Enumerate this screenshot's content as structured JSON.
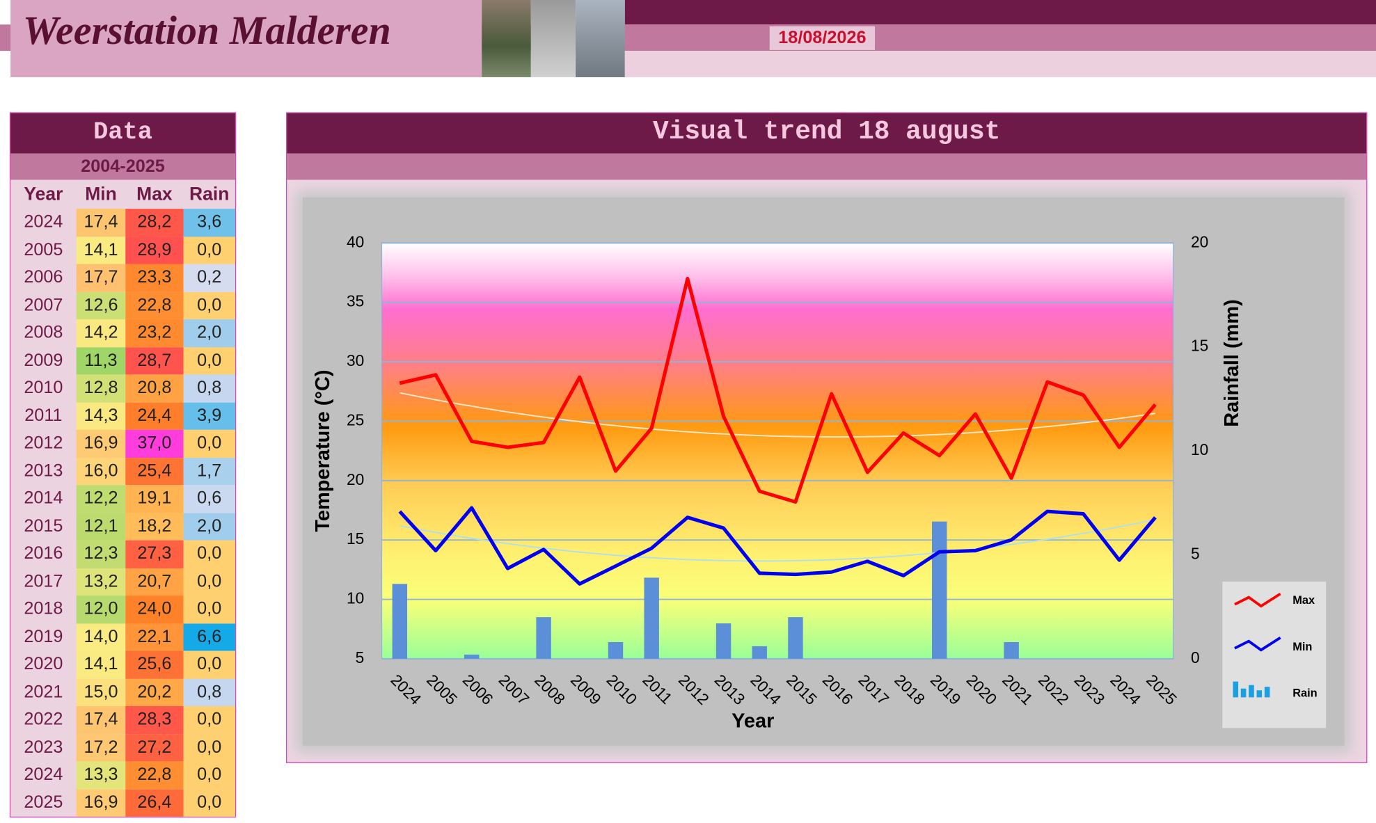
{
  "header": {
    "title": "Weerstation Malderen",
    "date": "18/08/2026"
  },
  "table": {
    "title": "Data",
    "subtitle": "2004-2025",
    "columns": [
      "Year",
      "Min",
      "Max",
      "Rain"
    ],
    "rows": [
      [
        "2024",
        "17,4",
        "28,2",
        "3,6"
      ],
      [
        "2005",
        "14,1",
        "28,9",
        "0,0"
      ],
      [
        "2006",
        "17,7",
        "23,3",
        "0,2"
      ],
      [
        "2007",
        "12,6",
        "22,8",
        "0,0"
      ],
      [
        "2008",
        "14,2",
        "23,2",
        "2,0"
      ],
      [
        "2009",
        "11,3",
        "28,7",
        "0,0"
      ],
      [
        "2010",
        "12,8",
        "20,8",
        "0,8"
      ],
      [
        "2011",
        "14,3",
        "24,4",
        "3,9"
      ],
      [
        "2012",
        "16,9",
        "37,0",
        "0,0"
      ],
      [
        "2013",
        "16,0",
        "25,4",
        "1,7"
      ],
      [
        "2014",
        "12,2",
        "19,1",
        "0,6"
      ],
      [
        "2015",
        "12,1",
        "18,2",
        "2,0"
      ],
      [
        "2016",
        "12,3",
        "27,3",
        "0,0"
      ],
      [
        "2017",
        "13,2",
        "20,7",
        "0,0"
      ],
      [
        "2018",
        "12,0",
        "24,0",
        "0,0"
      ],
      [
        "2019",
        "14,0",
        "22,1",
        "6,6"
      ],
      [
        "2020",
        "14,1",
        "25,6",
        "0,0"
      ],
      [
        "2021",
        "15,0",
        "20,2",
        "0,8"
      ],
      [
        "2022",
        "17,4",
        "28,3",
        "0,0"
      ],
      [
        "2023",
        "17,2",
        "27,2",
        "0,0"
      ],
      [
        "2024",
        "13,3",
        "22,8",
        "0,0"
      ],
      [
        "2025",
        "16,9",
        "26,4",
        "0,0"
      ]
    ]
  },
  "chart_data": {
    "type": "line",
    "title": "Visual trend 18 august",
    "x_label": "Year",
    "y_label": "Temperature (°C)",
    "y2_label": "Rainfall (mm)",
    "categories": [
      "2024",
      "2005",
      "2006",
      "2007",
      "2008",
      "2009",
      "2010",
      "2011",
      "2012",
      "2013",
      "2014",
      "2015",
      "2016",
      "2017",
      "2018",
      "2019",
      "2020",
      "2021",
      "2022",
      "2023",
      "2024",
      "2025"
    ],
    "series": [
      {
        "name": "Max",
        "color": "#ff0000",
        "values": [
          28.2,
          28.9,
          23.3,
          22.8,
          23.2,
          28.7,
          20.8,
          24.4,
          37.0,
          25.4,
          19.1,
          18.2,
          27.3,
          20.7,
          24.0,
          22.1,
          25.6,
          20.2,
          28.3,
          27.2,
          22.8,
          26.4
        ]
      },
      {
        "name": "Min",
        "color": "#0000ee",
        "values": [
          17.4,
          14.1,
          17.7,
          12.6,
          14.2,
          11.3,
          12.8,
          14.3,
          16.9,
          16.0,
          12.2,
          12.1,
          12.3,
          13.2,
          12.0,
          14.0,
          14.1,
          15.0,
          17.4,
          17.2,
          13.3,
          16.9
        ]
      },
      {
        "name": "Rain",
        "type": "bar",
        "axis": "y2",
        "color": "#5b8fd8",
        "values": [
          3.6,
          0,
          0.2,
          0,
          2.0,
          0,
          0.8,
          3.9,
          0,
          1.7,
          0.6,
          2.0,
          0,
          0,
          0,
          6.6,
          0,
          0.8,
          0,
          0,
          0,
          0
        ]
      }
    ],
    "ylim": [
      5,
      40
    ],
    "yticks": [
      5,
      10,
      15,
      20,
      25,
      30,
      35,
      40
    ],
    "y2lim": [
      0,
      20
    ],
    "y2ticks": [
      0,
      5,
      10,
      15,
      20
    ],
    "grid": true,
    "legend": "right"
  }
}
